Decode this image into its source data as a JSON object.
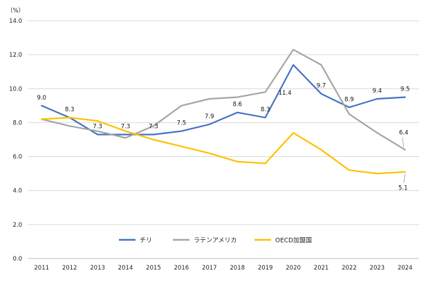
{
  "chart_data": {
    "type": "line",
    "unit_label": "（%）",
    "x": [
      "2011",
      "2012",
      "2013",
      "2014",
      "2015",
      "2016",
      "2017",
      "2018",
      "2019",
      "2020",
      "2021",
      "2022",
      "2023",
      "2024"
    ],
    "ylim": [
      0,
      14
    ],
    "yticks": [
      "0.0",
      "2.0",
      "4.0",
      "6.0",
      "8.0",
      "10.0",
      "12.0",
      "14.0"
    ],
    "grid": true,
    "legend_position": "bottom-center",
    "series": [
      {
        "name": "チリ",
        "color": "#4472C4",
        "values": [
          9.0,
          8.3,
          7.3,
          7.3,
          7.3,
          7.5,
          7.9,
          8.6,
          8.3,
          11.4,
          9.7,
          8.9,
          9.4,
          9.5
        ],
        "labels": [
          "9.0",
          "8.3",
          "7.3",
          "7.3",
          "7.3",
          "7.5",
          "7.9",
          "8.6",
          "8.3",
          "11.4",
          "9.7",
          "8.9",
          "9.4",
          "9.5"
        ]
      },
      {
        "name": "ラテンアメリカ",
        "color": "#A5A5A5",
        "values": [
          8.2,
          7.8,
          7.5,
          7.1,
          7.8,
          9.0,
          9.4,
          9.5,
          9.8,
          12.3,
          11.4,
          8.5,
          7.4,
          6.4
        ],
        "labels": [
          "",
          "",
          "",
          "",
          "",
          "",
          "",
          "",
          "",
          "",
          "",
          "",
          "",
          "6.4"
        ]
      },
      {
        "name": "OECD加盟国",
        "color": "#FFC000",
        "values": [
          8.2,
          8.3,
          8.1,
          7.5,
          7.0,
          6.6,
          6.2,
          5.7,
          5.6,
          7.4,
          6.4,
          5.2,
          5.0,
          5.1
        ],
        "labels": [
          "",
          "",
          "",
          "",
          "",
          "",
          "",
          "",
          "",
          "",
          "",
          "",
          "",
          "5.1"
        ]
      }
    ]
  }
}
